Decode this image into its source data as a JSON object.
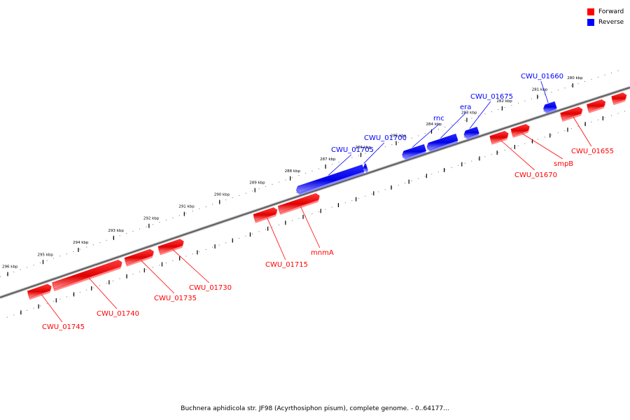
{
  "legend": {
    "forward": {
      "label": "Forward",
      "color": "#ff0000"
    },
    "reverse": {
      "label": "Reverse",
      "color": "#0000ff"
    }
  },
  "caption": "Buchnera aphidicola str. JF98 (Acyrthosiphon pisum), complete genome. - 0..64177...",
  "axis": {
    "unit": "kbp",
    "ticks": [
      {
        "label": "296 kbp",
        "kbp": 296
      },
      {
        "label": "295 kbp",
        "kbp": 295
      },
      {
        "label": "294 kbp",
        "kbp": 294
      },
      {
        "label": "293 kbp",
        "kbp": 293
      },
      {
        "label": "292 kbp",
        "kbp": 292
      },
      {
        "label": "291 kbp",
        "kbp": 291
      },
      {
        "label": "290 kbp",
        "kbp": 290
      },
      {
        "label": "289 kbp",
        "kbp": 289
      },
      {
        "label": "288 kbp",
        "kbp": 288
      },
      {
        "label": "287 kbp",
        "kbp": 287
      },
      {
        "label": "286 kbp",
        "kbp": 286
      },
      {
        "label": "285 kbp",
        "kbp": 285
      },
      {
        "label": "284 kbp",
        "kbp": 284
      },
      {
        "label": "283 kbp",
        "kbp": 283
      },
      {
        "label": "282 kbp",
        "kbp": 282
      },
      {
        "label": "281 kbp",
        "kbp": 281
      },
      {
        "label": "280 kbp",
        "kbp": 280
      }
    ]
  },
  "genes": [
    {
      "id": "CWU_01745",
      "label": "CWU_01745",
      "strand": "forward",
      "start_kbp": 295.65,
      "end_kbp": 295.0
    },
    {
      "id": "CWU_01740",
      "label": "CWU_01740",
      "strand": "forward",
      "start_kbp": 294.95,
      "end_kbp": 293.0
    },
    {
      "id": "CWU_01735",
      "label": "CWU_01735",
      "strand": "forward",
      "start_kbp": 292.9,
      "end_kbp": 292.1
    },
    {
      "id": "CWU_01730",
      "label": "CWU_01730",
      "strand": "forward",
      "start_kbp": 291.95,
      "end_kbp": 291.25
    },
    {
      "id": "CWU_01715",
      "label": "CWU_01715",
      "strand": "forward",
      "start_kbp": 289.25,
      "end_kbp": 288.6
    },
    {
      "id": "mnmA",
      "label": "mnmA",
      "strand": "forward",
      "start_kbp": 288.55,
      "end_kbp": 287.4
    },
    {
      "id": "CWU_01705",
      "label": "CWU_01705",
      "strand": "reverse",
      "start_kbp": 287.95,
      "end_kbp": 286.05
    },
    {
      "id": "CWU_01700",
      "label": "CWU_01700",
      "strand": "reverse",
      "start_kbp": 286.05,
      "end_kbp": 285.95
    },
    {
      "id": "rnc",
      "label": "rnc",
      "strand": "reverse",
      "start_kbp": 284.95,
      "end_kbp": 284.3
    },
    {
      "id": "era",
      "label": "era",
      "strand": "reverse",
      "start_kbp": 284.25,
      "end_kbp": 283.4
    },
    {
      "id": "CWU_01675",
      "label": "CWU_01675",
      "strand": "reverse",
      "start_kbp": 283.2,
      "end_kbp": 282.8
    },
    {
      "id": "CWU_01670",
      "label": "CWU_01670",
      "strand": "forward",
      "start_kbp": 282.55,
      "end_kbp": 282.05
    },
    {
      "id": "smpB",
      "label": "smpB",
      "strand": "forward",
      "start_kbp": 281.95,
      "end_kbp": 281.45
    },
    {
      "id": "CWU_01660",
      "label": "CWU_01660",
      "strand": "reverse",
      "start_kbp": 280.95,
      "end_kbp": 280.6
    },
    {
      "id": "CWU_01655",
      "label": "CWU_01655",
      "strand": "forward",
      "start_kbp": 280.55,
      "end_kbp": 279.95
    },
    {
      "id": "gene_a",
      "label": "",
      "strand": "forward",
      "start_kbp": 279.8,
      "end_kbp": 279.3
    },
    {
      "id": "gene_b",
      "label": "",
      "strand": "forward",
      "start_kbp": 279.1,
      "end_kbp": 278.7
    }
  ]
}
